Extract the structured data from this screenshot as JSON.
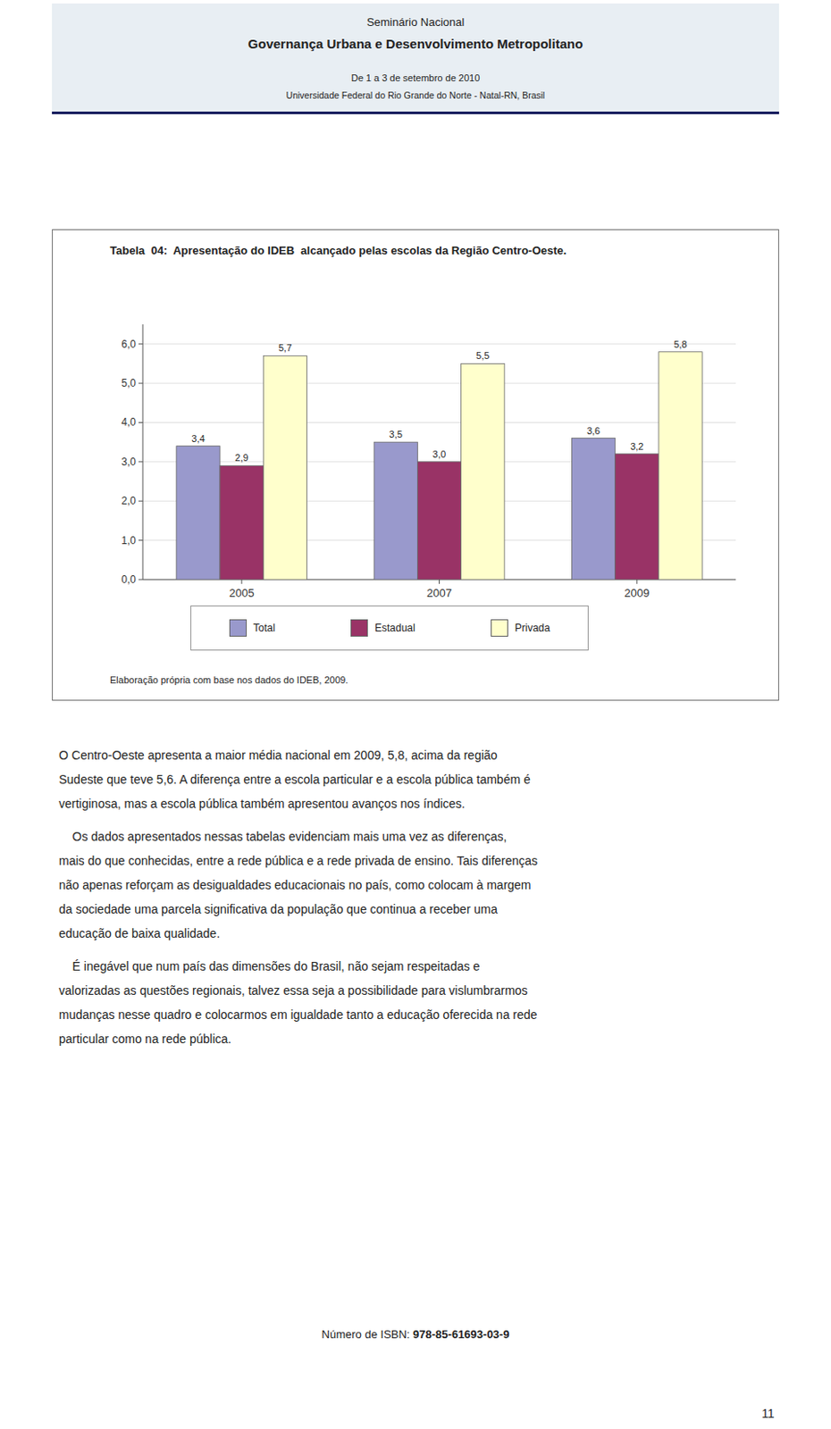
{
  "chart_data": {
    "type": "bar",
    "title": "Tabela  04:  Apresentação do IDEB  alcançado pelas escolas da Região Centro-Oeste.",
    "annotations": [
      "Elaboração própria com base nos dados do IDEB, 2009."
    ],
    "categories": [
      "2005",
      "2007",
      "2009"
    ],
    "series": [
      {
        "name": "Total",
        "color": "#9999CC",
        "values": [
          3.4,
          3.5,
          3.6
        ],
        "value_labels": [
          "3,4",
          "3,5",
          "3,6"
        ]
      },
      {
        "name": "Estadual",
        "color": "#993366",
        "values": [
          2.9,
          3.0,
          3.2
        ],
        "value_labels": [
          "2,9",
          "3,0",
          "3,2"
        ]
      },
      {
        "name": "Privada",
        "color": "#FFFFCC",
        "values": [
          5.7,
          5.5,
          5.8
        ],
        "value_labels": [
          "5,7",
          "5,5",
          "5,8"
        ]
      }
    ],
    "ylim": [
      0,
      6.5
    ],
    "yticks": [
      {
        "value": 0,
        "label": "0,0"
      },
      {
        "value": 1,
        "label": "1,0"
      },
      {
        "value": 2,
        "label": "2,0"
      },
      {
        "value": 3,
        "label": "3,0"
      },
      {
        "value": 4,
        "label": "4,0"
      },
      {
        "value": 5,
        "label": "5,0"
      },
      {
        "value": 6,
        "label": "6,0"
      }
    ],
    "grid": true,
    "legend": "bottom",
    "data_labels": true
  },
  "page": {
    "header": [
      "Seminário Nacional",
      "Governança Urbana e Desenvolvimento Metropolitano",
      "De 1 a 3 de setembro de 2010",
      "Universidade Federal do Rio Grande do Norte - Natal-RN, Brasil"
    ],
    "paragraphs": [
      [
        "O Centro-Oeste apresenta a maior média nacional em 2009, 5,8, acima da região",
        "Sudeste que teve 5,6. A diferença entre a escola particular e a escola pública também é",
        "vertiginosa, mas a escola pública também apresentou avanços nos índices."
      ],
      [
        "    Os dados apresentados nessas tabelas evidenciam mais uma vez as diferenças,",
        "mais do que conhecidas, entre a rede pública e a rede privada de ensino. Tais diferenças",
        "não apenas reforçam as desigualdades educacionais no país, como colocam à margem",
        "da sociedade uma parcela significativa da população que continua a receber uma",
        "educação de baixa qualidade."
      ],
      [
        "    É inegável que num país das dimensões do Brasil, não sejam respeitadas e",
        "valorizadas as questões regionais, talvez essa seja a possibilidade para vislumbrarmos",
        "mudanças nesse quadro e colocarmos em igualdade tanto a educação oferecida na rede",
        "particular como na rede pública."
      ]
    ],
    "isbn_prefix": "Número de ISBN: ",
    "isbn": "978-85-61693-03-9",
    "page_number": "11"
  }
}
